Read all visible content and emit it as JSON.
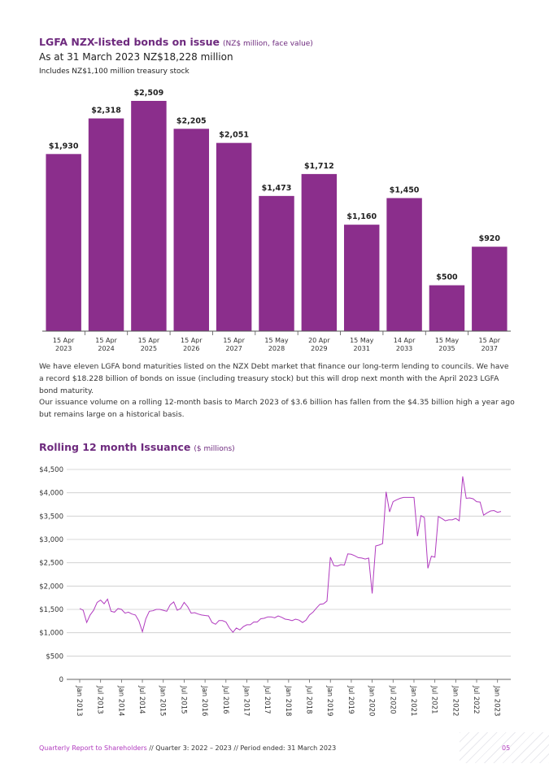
{
  "chart1": {
    "title": "LGFA NZX-listed bonds on issue",
    "title_unit": "(NZ$ million, face value)",
    "subtitle": "As at 31 March 2023 NZ$18,228 million",
    "note": "Includes NZ$1,100 million treasury stock"
  },
  "paragraphs": [
    "We have eleven LGFA bond maturities listed on the NZX Debt market that finance our long-term lending to councils. We have a record $18.228 billion of bonds on issue (including treasury stock) but this will drop next month with the April 2023 LGFA bond maturity.",
    "Our issuance volume on a rolling 12-month basis to March 2023 of $3.6 billion has fallen from the $4.35 billion high a year ago but remains large on a historical basis."
  ],
  "chart2": {
    "title": "Rolling 12 month Issuance",
    "title_unit": "($ millions)"
  },
  "footer": {
    "report": "Quarterly Report to Shareholders",
    "sep": " // ",
    "quarter": "Quarter 3: 2022 – 2023",
    "period": "Period ended: 31 March 2023",
    "page": "05"
  },
  "colors": {
    "accent": "#8b2e8c",
    "line": "#b13bbf",
    "title": "#6e2a7e"
  },
  "chart_data": [
    {
      "type": "bar",
      "categories": [
        "15 Apr 2023",
        "15 Apr 2024",
        "15 Apr 2025",
        "15 Apr 2026",
        "15 Apr 2027",
        "15 May 2028",
        "20 Apr 2029",
        "15 May 2031",
        "14 Apr 2033",
        "15 May 2035",
        "15 Apr 2037"
      ],
      "values": [
        1930,
        2318,
        2509,
        2205,
        2051,
        1473,
        1712,
        1160,
        1450,
        500,
        920
      ],
      "data_labels": [
        "$1,930",
        "$2,318",
        "$2,509",
        "$2,205",
        "$2,051",
        "$1,473",
        "$1,712",
        "$1,160",
        "$1,450",
        "$500",
        "$920"
      ],
      "title": "LGFA NZX-listed bonds on issue",
      "ylim": [
        0,
        2600
      ]
    },
    {
      "type": "line",
      "title": "Rolling 12 month Issuance",
      "ylim": [
        0,
        4500
      ],
      "yticks": [
        0,
        500,
        1000,
        1500,
        2000,
        2500,
        3000,
        3500,
        4000,
        4500
      ],
      "ytick_labels": [
        "0",
        "$500",
        "$1,000",
        "$1,500",
        "$2,000",
        "$2,500",
        "$3,000",
        "$3,500",
        "$4,000",
        "$4,500"
      ],
      "xtick_labels": [
        "Jan 2013",
        "Jul 2013",
        "Jan 2014",
        "Jul 2014",
        "Jan 2015",
        "Jul 2015",
        "Jan 2016",
        "Jul 2016",
        "Jan 2017",
        "Jul 2017",
        "Jan 2018",
        "Jul 2018",
        "Jan 2019",
        "Jul 2019",
        "Jan 2020",
        "Jul 2020",
        "Jan 2021",
        "Jul 2021",
        "Jan 2022",
        "Jul 2022",
        "Jan 2023"
      ],
      "x_start": "Jan 2013",
      "x_end": "Mar 2023",
      "grid": true,
      "series": [
        {
          "values": [
            1520,
            1480,
            1220,
            1380,
            1480,
            1650,
            1700,
            1620,
            1720,
            1460,
            1440,
            1520,
            1500,
            1420,
            1440,
            1400,
            1380,
            1250,
            1020,
            1300,
            1460,
            1470,
            1500,
            1500,
            1480,
            1460,
            1600,
            1660,
            1480,
            1520,
            1650,
            1560,
            1420,
            1430,
            1400,
            1380,
            1370,
            1360,
            1220,
            1180,
            1260,
            1260,
            1230,
            1100,
            1010,
            1100,
            1060,
            1130,
            1170,
            1170,
            1230,
            1230,
            1300,
            1310,
            1340,
            1340,
            1320,
            1360,
            1330,
            1290,
            1280,
            1260,
            1290,
            1270,
            1220,
            1270,
            1380,
            1440,
            1530,
            1610,
            1620,
            1680,
            2620,
            2440,
            2430,
            2460,
            2450,
            2690,
            2680,
            2650,
            2610,
            2600,
            2580,
            2600,
            1840,
            2860,
            2880,
            2910,
            4020,
            3590,
            3810,
            3850,
            3880,
            3900,
            3900,
            3900,
            3900,
            3070,
            3510,
            3470,
            2380,
            2640,
            2620,
            3490,
            3450,
            3400,
            3420,
            3420,
            3450,
            3400,
            4350,
            3880,
            3890,
            3870,
            3810,
            3800,
            3520,
            3570,
            3610,
            3620,
            3580,
            3600
          ]
        }
      ]
    }
  ]
}
